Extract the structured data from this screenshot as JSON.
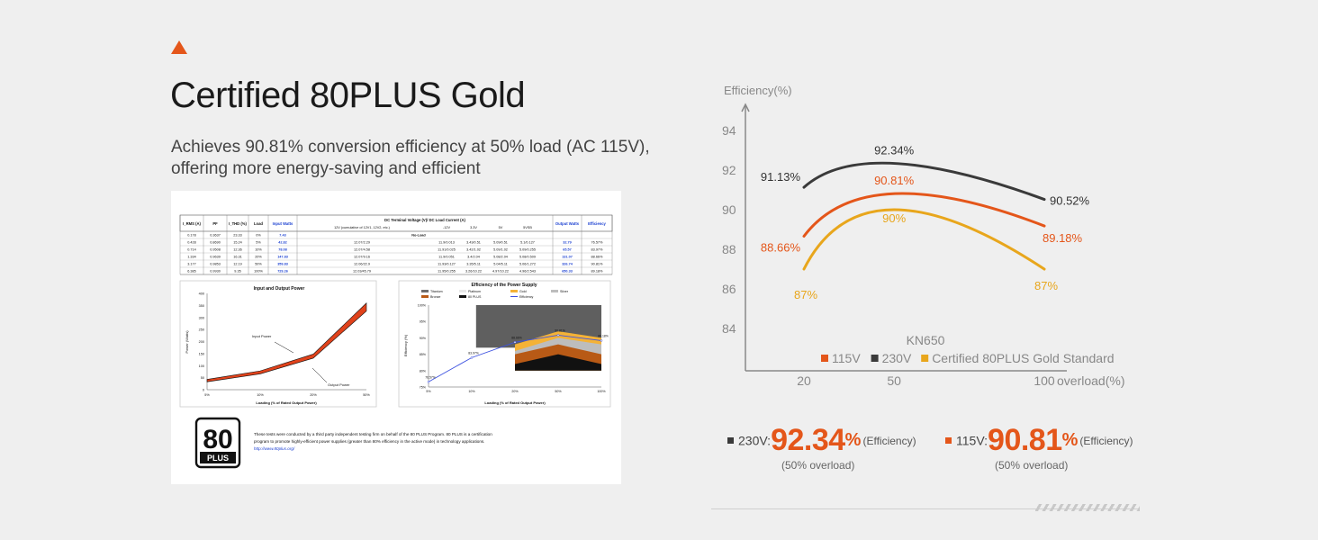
{
  "heading": {
    "title": "Certified 80PLUS Gold",
    "line1": "Achieves 90.81% conversion efficiency at 50% load (AC 115V),",
    "line2": "offering more energy-saving and efficient"
  },
  "colors": {
    "accent": "#e4561a",
    "v115": "#e4561a",
    "v230": "#3a3a3a",
    "gold": "#e8a61c"
  },
  "report": {
    "table_headers": [
      "I_RMS (A)",
      "PF",
      "I_THD (%)",
      "Load",
      "Input Watts",
      "DC Terminal Voltage (V)/ DC Load Current (A)",
      "Output Watts",
      "Efficiency"
    ],
    "sub_header": "12V (cumulative of 12V1, 12V2, etc.)",
    "sub_cols": [
      "-12V",
      "3.3V",
      "5V",
      "5VSB"
    ],
    "rows": [
      [
        "0.178",
        "0.3637",
        "23.33",
        "0%",
        "7.43",
        "No-Load",
        "",
        "",
        "",
        "",
        "",
        ""
      ],
      [
        "0.428",
        "0.8690",
        "15.24",
        "5%",
        "42.82",
        "12.07/2.29",
        "11.9/0.013",
        "3.43/0.51",
        "5.09/0.51",
        "5.1/0.127",
        "32.79",
        "76.57%"
      ],
      [
        "0.714",
        "0.9508",
        "12.36",
        "10%",
        "78.08",
        "12.07/4.58",
        "11.91/0.025",
        "3.42/1.02",
        "5.09/1.02",
        "5.09/0.255",
        "65.57",
        "83.97%"
      ],
      [
        "1.334",
        "0.9639",
        "16.31",
        "20%",
        "147.83",
        "12.07/9.16",
        "11.9/0.051",
        "3.4/2.04",
        "5.08/2.04",
        "5.08/0.509",
        "131.07",
        "88.66%"
      ],
      [
        "3.177",
        "0.9853",
        "12.19",
        "50%",
        "359.83",
        "12.06/22.9",
        "11.93/0.127",
        "3.35/5.11",
        "5.04/5.11",
        "5.06/1.272",
        "326.74",
        "90.81%"
      ],
      [
        "6.385",
        "0.9930",
        "9.35",
        "100%",
        "729.26",
        "12.03/45.79",
        "11.95/0.255",
        "3.26/10.22",
        "4.97/10.22",
        "4.96/2.543",
        "650.33",
        "89.18%"
      ]
    ],
    "power_chart": {
      "title": "Input and Output Power",
      "ylabel": "Power (Watts)",
      "xlabel": "Loading (% of Rated Output Power)",
      "yticks": [
        "0",
        "50",
        "100",
        "150",
        "200",
        "250",
        "300",
        "350",
        "400"
      ],
      "xticks": [
        "5%",
        "10%",
        "20%",
        "50%"
      ],
      "input_label": "Input Power",
      "output_label": "Output Power",
      "input_values": [
        42.82,
        78.08,
        147.83,
        359.83
      ],
      "output_values": [
        32.79,
        65.57,
        131.07,
        326.74
      ]
    },
    "eff_chart": {
      "title": "Efficiency of the Power Supply",
      "legend": [
        "Titanium",
        "Platinum",
        "Gold",
        "Silver",
        "Bronze",
        "80 PLUS",
        "Efficiency"
      ],
      "ylabel": "Efficiency (%)",
      "xlabel": "Loading (% of Rated Output Power)",
      "yticks": [
        "75%",
        "80%",
        "85%",
        "90%",
        "95%",
        "100%"
      ],
      "xticks": [
        "5%",
        "10%",
        "20%",
        "50%",
        "100%"
      ],
      "values": [
        76.57,
        83.97,
        88.66,
        90.81,
        89.18
      ],
      "labels": [
        "76.57%",
        "83.97%",
        "88.66%",
        "90.81%",
        "89.18%"
      ]
    },
    "logo_text_top": "80",
    "logo_text_bottom": "PLUS",
    "note_line1": "These tests were conducted by a third party independent testing firm on behalf of the 80 PLUS Program. 80 PLUS is a certification",
    "note_line2": "program to promote highly-efficient power supplies (greater than 80% efficiency in the active mode) in technology applications.",
    "note_link": "http://www.80plus.org/"
  },
  "chart_data": {
    "type": "line",
    "title": "KN650",
    "ylabel": "Efficiency(%)",
    "xlabel": "overload(%)",
    "x": [
      20,
      50,
      100
    ],
    "xticks": [
      "20",
      "50",
      "100"
    ],
    "yticks": [
      "84",
      "86",
      "88",
      "90",
      "92",
      "94"
    ],
    "ylim": [
      82.4,
      95
    ],
    "legend_position": "bottom",
    "series": [
      {
        "name": "115V",
        "color": "#e4561a",
        "values": [
          88.66,
          90.81,
          89.18
        ],
        "labels": [
          "88.66%",
          "90.81%",
          "89.18%"
        ]
      },
      {
        "name": "230V",
        "color": "#3a3a3a",
        "values": [
          91.13,
          92.34,
          90.52
        ],
        "labels": [
          "91.13%",
          "92.34%",
          "90.52%"
        ]
      },
      {
        "name": "Certified 80PLUS Gold Standard",
        "color": "#e8a61c",
        "values": [
          87,
          90,
          87
        ],
        "labels": [
          "87%",
          "90%",
          "87%"
        ]
      }
    ]
  },
  "stats": {
    "s230": {
      "label": "230V:",
      "value": "92.34",
      "unit": "%",
      "tag": "(Efficiency)",
      "sub": "(50% overload)"
    },
    "s115": {
      "label": "115V:",
      "value": "90.81",
      "unit": "%",
      "tag": "(Efficiency)",
      "sub": "(50% overload)"
    }
  }
}
